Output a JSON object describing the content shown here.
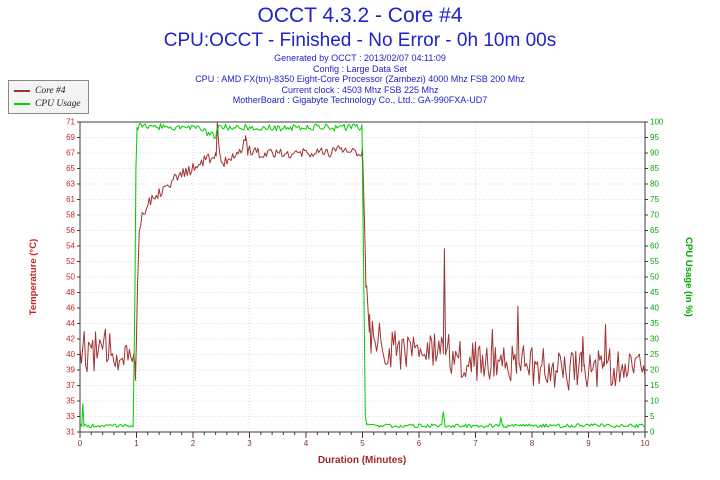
{
  "header": {
    "text_color": "#2222cc",
    "title": "OCCT 4.3.2 - Core #4",
    "status": "CPU:OCCT - Finished - No Error - 0h 10m 00s",
    "info_lines": [
      "Generated by OCCT : 2013/02/07 04:11:09",
      "Config : Large Data Set",
      "CPU : AMD FX(tm)-8350 Eight-Core Processor (Zambezi) 4000 Mhz FSB 200 Mhz",
      "Current clock : 4503 Mhz FSB 225 Mhz",
      "MotherBoard : Gigabyte Technology Co., Ltd.: GA-990FXA-UD7"
    ]
  },
  "colors": {
    "grid": "#dcdcdc",
    "plot_border": "#3c3c3c",
    "axis": "#3c3c3c",
    "background": "#ffffff"
  },
  "chart_data": {
    "type": "line",
    "title": "OCCT 4.3.2 - Core #4",
    "legend_position": "top-left",
    "grid": true,
    "sample_step_minutes": 0.025,
    "noise_seed": 12,
    "x_axis": {
      "label": "Duration (Minutes)",
      "title_color": "#a02828",
      "tick_color": "#803333",
      "min": 0,
      "max": 10,
      "major_step": 1,
      "minor_step": 0.2,
      "tick_labels": [
        "0",
        "1",
        "2",
        "3",
        "4",
        "5",
        "6",
        "7",
        "8",
        "9",
        "10"
      ]
    },
    "y_left_axis": {
      "label": "Temperature (°C)",
      "color": "#cc2222",
      "min": 31,
      "max": 71,
      "tick_labels_top_to_bottom": [
        "71",
        "69",
        "67",
        "65",
        "63",
        "61",
        "58",
        "56",
        "54",
        "52",
        "50",
        "48",
        "46",
        "44",
        "42",
        "40",
        "39",
        "37",
        "35",
        "33",
        "31"
      ]
    },
    "y_right_axis": {
      "label": "CPU Usage (in %)",
      "color": "#00a800",
      "min": 0,
      "max": 100,
      "step": 5,
      "tick_labels_top_to_bottom": [
        "100",
        "95",
        "90",
        "85",
        "80",
        "75",
        "70",
        "65",
        "60",
        "55",
        "50",
        "45",
        "40",
        "35",
        "30",
        "25",
        "20",
        "15",
        "10",
        "5",
        "0"
      ]
    },
    "series": [
      {
        "name": "Core #4",
        "color": "#a03232",
        "axis": "left",
        "clamp": [
          31,
          71
        ],
        "anchors": [
          [
            0,
            43
          ],
          [
            0.05,
            41.5
          ],
          [
            0.95,
            41.5
          ],
          [
            0.98,
            38.5
          ],
          [
            1,
            44
          ],
          [
            1.02,
            50
          ],
          [
            1.05,
            57.5
          ],
          [
            1.1,
            59
          ],
          [
            1.25,
            61
          ],
          [
            1.4,
            62
          ],
          [
            1.55,
            63
          ],
          [
            1.8,
            64.2
          ],
          [
            2,
            65
          ],
          [
            2.2,
            66
          ],
          [
            2.35,
            66.4
          ],
          [
            2.41,
            66.8
          ],
          [
            2.43,
            71.2
          ],
          [
            2.46,
            67.5
          ],
          [
            2.5,
            66.1
          ],
          [
            2.55,
            65.9
          ],
          [
            2.7,
            66.6
          ],
          [
            2.85,
            67.2
          ],
          [
            2.9,
            68.6
          ],
          [
            2.93,
            69.3
          ],
          [
            2.97,
            67.3
          ],
          [
            3.2,
            67
          ],
          [
            3.5,
            67.2
          ],
          [
            3.8,
            66.9
          ],
          [
            4.1,
            67.1
          ],
          [
            4.4,
            67
          ],
          [
            4.55,
            67.9
          ],
          [
            4.65,
            67.1
          ],
          [
            4.85,
            67.2
          ],
          [
            5,
            67
          ],
          [
            5.03,
            60
          ],
          [
            5.06,
            50
          ],
          [
            5.12,
            44
          ],
          [
            5.3,
            42.5
          ],
          [
            5.6,
            42
          ],
          [
            6,
            41.5
          ],
          [
            6.3,
            41
          ],
          [
            6.43,
            41
          ],
          [
            6.45,
            54.5
          ],
          [
            6.47,
            41
          ],
          [
            6.8,
            40.5
          ],
          [
            7.2,
            40
          ],
          [
            7.28,
            40
          ],
          [
            7.3,
            44.5
          ],
          [
            7.32,
            40
          ],
          [
            7.5,
            40
          ],
          [
            7.73,
            40
          ],
          [
            7.75,
            46.5
          ],
          [
            7.77,
            40
          ],
          [
            8,
            39.5
          ],
          [
            8.4,
            39
          ],
          [
            8.7,
            39
          ],
          [
            8.88,
            40
          ],
          [
            8.9,
            44
          ],
          [
            8.92,
            39.5
          ],
          [
            9.1,
            39
          ],
          [
            9.28,
            39.5
          ],
          [
            9.3,
            44
          ],
          [
            9.32,
            39.5
          ],
          [
            9.6,
            38.8
          ],
          [
            9.85,
            39.5
          ],
          [
            10,
            40.5
          ]
        ],
        "noise_anchors": [
          [
            0,
            2.8
          ],
          [
            0.93,
            2.8
          ],
          [
            0.97,
            1.5
          ],
          [
            1,
            0.8
          ],
          [
            2.3,
            0.7
          ],
          [
            2.41,
            0.4
          ],
          [
            2.46,
            0.4
          ],
          [
            2.55,
            0.7
          ],
          [
            5,
            0.7
          ],
          [
            5.05,
            1
          ],
          [
            5.15,
            2.8
          ],
          [
            6.4,
            2.8
          ],
          [
            6.44,
            0.5
          ],
          [
            6.47,
            0.5
          ],
          [
            6.52,
            2.8
          ],
          [
            7.26,
            2.6
          ],
          [
            7.3,
            0.6
          ],
          [
            7.34,
            2.6
          ],
          [
            7.7,
            2.6
          ],
          [
            7.76,
            0.5
          ],
          [
            7.82,
            2.6
          ],
          [
            8.86,
            2.6
          ],
          [
            8.91,
            0.6
          ],
          [
            8.96,
            2.6
          ],
          [
            9.26,
            2.5
          ],
          [
            9.31,
            0.6
          ],
          [
            9.36,
            2.5
          ],
          [
            10,
            2.4
          ]
        ]
      },
      {
        "name": "CPU Usage",
        "color": "#00cc00",
        "axis": "right",
        "clamp": [
          0,
          100
        ],
        "anchors": [
          [
            0,
            2
          ],
          [
            0.03,
            2
          ],
          [
            0.05,
            9
          ],
          [
            0.07,
            2
          ],
          [
            0.5,
            2
          ],
          [
            0.94,
            2
          ],
          [
            0.97,
            40
          ],
          [
            0.99,
            85
          ],
          [
            1.01,
            98.5
          ],
          [
            1.5,
            98.5
          ],
          [
            2,
            98.2
          ],
          [
            2.4,
            95.5
          ],
          [
            2.44,
            98.3
          ],
          [
            3,
            98.4
          ],
          [
            3.5,
            98
          ],
          [
            4,
            98.4
          ],
          [
            4.5,
            98.2
          ],
          [
            4.99,
            98.4
          ],
          [
            5.02,
            55
          ],
          [
            5.05,
            5
          ],
          [
            5.08,
            2.2
          ],
          [
            5.5,
            2
          ],
          [
            6,
            2
          ],
          [
            6.4,
            2
          ],
          [
            6.43,
            7
          ],
          [
            6.46,
            2
          ],
          [
            7,
            2
          ],
          [
            7.42,
            2
          ],
          [
            7.45,
            4.5
          ],
          [
            7.48,
            2
          ],
          [
            8,
            2
          ],
          [
            8.5,
            2
          ],
          [
            9,
            2.2
          ],
          [
            9.5,
            2
          ],
          [
            10,
            2
          ]
        ],
        "noise_anchors": [
          [
            0,
            0.6
          ],
          [
            0.93,
            0.6
          ],
          [
            1,
            1.1
          ],
          [
            4.99,
            1.1
          ],
          [
            5.06,
            0.6
          ],
          [
            10,
            0.6
          ]
        ]
      }
    ]
  }
}
